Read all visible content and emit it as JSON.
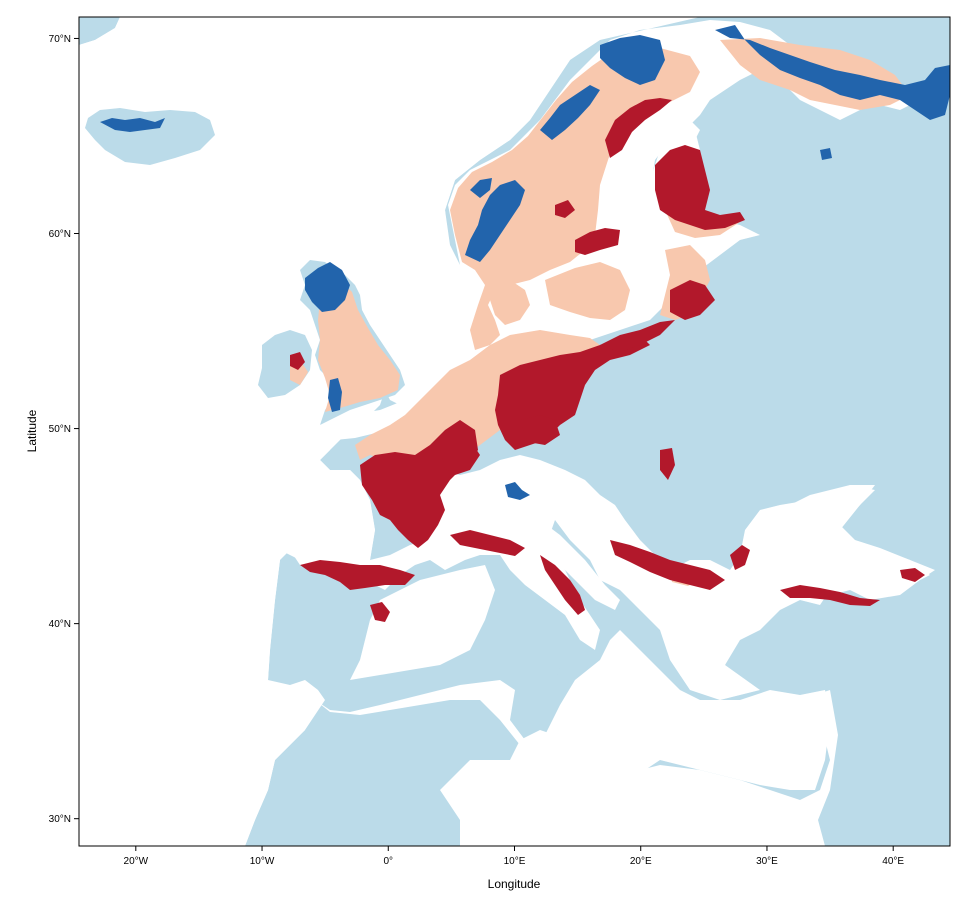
{
  "map": {
    "x_axis": {
      "title": "Longitude",
      "ticks": [
        {
          "value": -20,
          "label": "20°W"
        },
        {
          "value": -10,
          "label": "10°W"
        },
        {
          "value": 0,
          "label": "0°"
        },
        {
          "value": 10,
          "label": "10°E"
        },
        {
          "value": 20,
          "label": "20°E"
        },
        {
          "value": 30,
          "label": "30°E"
        },
        {
          "value": 40,
          "label": "40°E"
        }
      ],
      "range": [
        -24.5,
        44.5
      ]
    },
    "y_axis": {
      "title": "Latitude",
      "ticks": [
        {
          "value": 30,
          "label": "30°N"
        },
        {
          "value": 40,
          "label": "40°N"
        },
        {
          "value": 50,
          "label": "50°N"
        },
        {
          "value": 60,
          "label": "60°N"
        },
        {
          "value": 70,
          "label": "70°N"
        }
      ],
      "range": [
        28.6,
        71.1
      ]
    },
    "colors": {
      "sea": "#ffffff",
      "land_background": "#bbdbe9",
      "category_dark_blue": "#2264ac",
      "category_light_peach": "#f8c8ae",
      "category_dark_red": "#b2182b"
    }
  }
}
